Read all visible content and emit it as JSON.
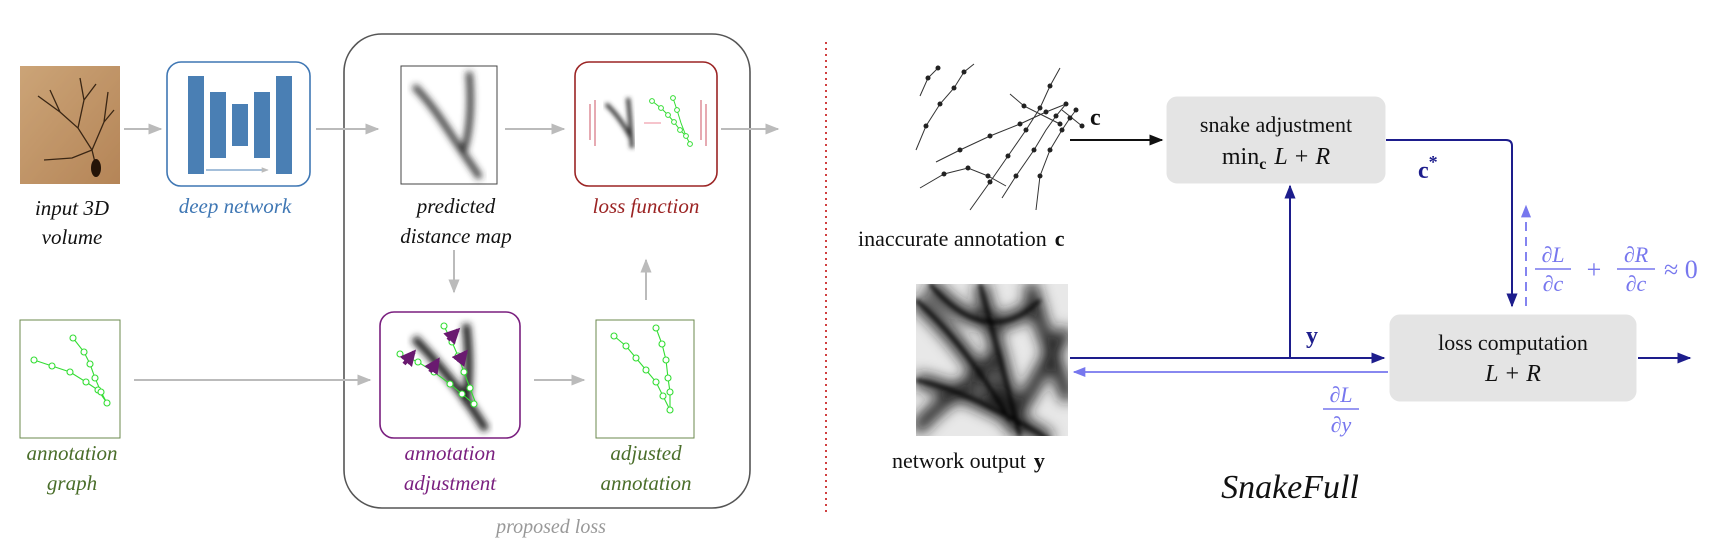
{
  "left_panel": {
    "input": {
      "label_line1": "input 3D",
      "label_line2": "volume"
    },
    "network": {
      "label": "deep network"
    },
    "distance_map": {
      "label_line1": "predicted",
      "label_line2": "distance map"
    },
    "loss": {
      "label": "loss function"
    },
    "annotation_graph": {
      "label_line1": "annotation",
      "label_line2": "graph"
    },
    "adjustment": {
      "label_line1": "annotation",
      "label_line2": "adjustment"
    },
    "adjusted": {
      "label_line1": "adjusted",
      "label_line2": "annotation"
    },
    "group_caption": "proposed loss"
  },
  "right_panel": {
    "inaccurate": {
      "label_text": "inaccurate annotation",
      "symbol": "c"
    },
    "network_output": {
      "label_text": "network output",
      "symbol": "y"
    },
    "snake_box": {
      "line1": "snake adjustment",
      "min_word": "min",
      "min_sub": "c",
      "expr": "L + R"
    },
    "loss_box": {
      "line1": "loss computation",
      "line2": "L + R"
    },
    "edge_c": "c",
    "edge_c_star": "c",
    "edge_c_star_sup": "*",
    "edge_y": "y",
    "grad_y": {
      "num": "∂L",
      "den": "∂y"
    },
    "grad_c": {
      "num1": "∂L",
      "den1": "∂c",
      "plus": "+",
      "num2": "∂R",
      "den2": "∂c",
      "approx": "≈ 0"
    },
    "title": "SnakeFull"
  },
  "colors": {
    "blue": "#3f77b4",
    "red": "#9b2424",
    "purple": "#7a1f7f",
    "green": "#4a6e2a",
    "navy": "#1d1d8c",
    "lavender": "#7777ee",
    "gray": "#bbbbbb"
  }
}
